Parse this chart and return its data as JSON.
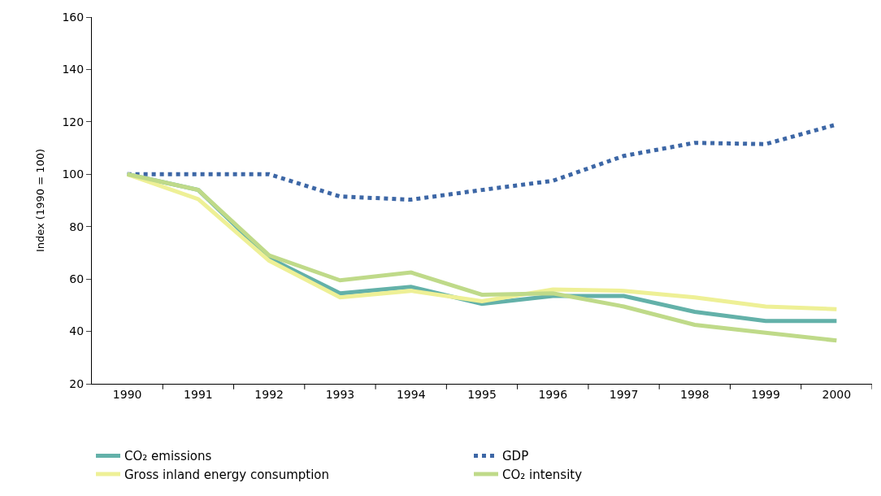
{
  "chart_data": {
    "type": "line",
    "ylabel": "Index (1990 = 100)",
    "categories": [
      "1990",
      "1991",
      "1992",
      "1993",
      "1994",
      "1995",
      "1996",
      "1997",
      "1998",
      "1999",
      "2000"
    ],
    "ylim": [
      20,
      160
    ],
    "yticks": [
      20,
      40,
      60,
      80,
      100,
      120,
      140,
      160
    ],
    "grid": false,
    "legend": "bottom",
    "marker": "none",
    "line_style": "solid",
    "series": [
      {
        "name": "CO₂ emissions",
        "color": "#63b1a9",
        "values": [
          100,
          94,
          68,
          54.5,
          57,
          50.5,
          53.5,
          53.5,
          47.5,
          44,
          44
        ]
      },
      {
        "name": "GDP",
        "color": "#3d67a6",
        "line_style": "dotted",
        "values": [
          100,
          100,
          100,
          91.5,
          90.3,
          94,
          97.5,
          107,
          112,
          111.5,
          119
        ]
      },
      {
        "name": "Gross inland energy consumption",
        "color": "#eef096",
        "values": [
          100,
          90.5,
          67,
          53,
          55.5,
          51.5,
          56,
          55.5,
          53,
          49.5,
          48.5
        ]
      },
      {
        "name": "CO₂ intensity",
        "color": "#bfda89",
        "values": [
          100,
          94,
          69,
          59.5,
          62.5,
          54,
          54.5,
          49.5,
          42.5,
          39.5,
          36.5
        ]
      }
    ]
  }
}
